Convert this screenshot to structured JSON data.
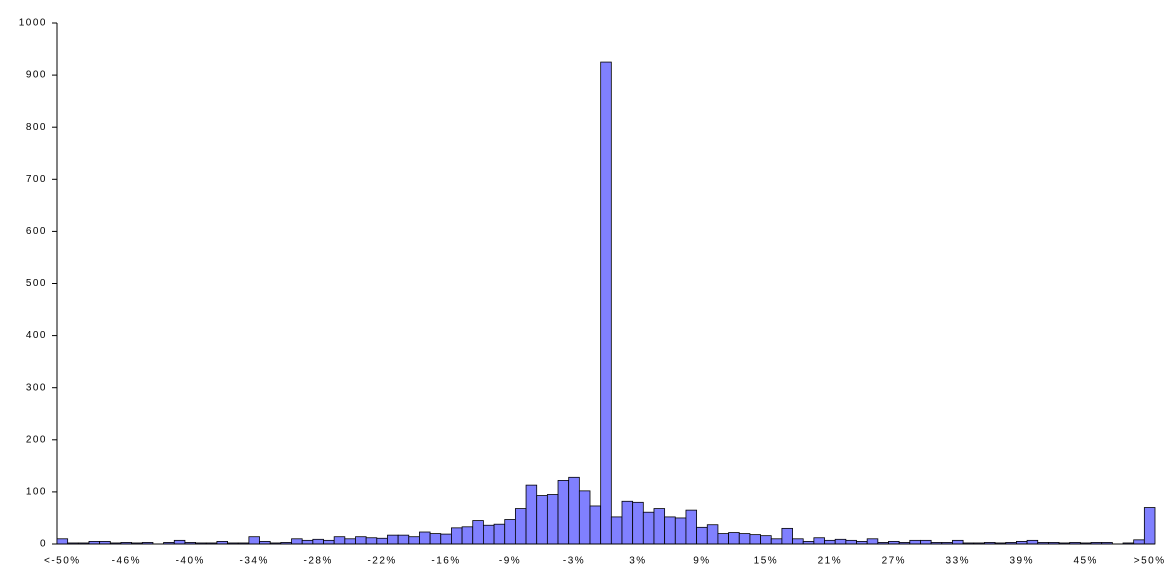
{
  "chart_data": {
    "type": "bar",
    "categories": [
      "<-50%",
      null,
      null,
      null,
      null,
      null,
      "-46%",
      null,
      null,
      null,
      null,
      null,
      "-40%",
      null,
      null,
      null,
      null,
      null,
      "-34%",
      null,
      null,
      null,
      null,
      null,
      "-28%",
      null,
      null,
      null,
      null,
      null,
      "-22%",
      null,
      null,
      null,
      null,
      null,
      "-16%",
      null,
      null,
      null,
      null,
      null,
      "-9%",
      null,
      null,
      null,
      null,
      null,
      "-3%",
      null,
      null,
      null,
      null,
      null,
      "3%",
      null,
      null,
      null,
      null,
      null,
      "9%",
      null,
      null,
      null,
      null,
      null,
      "15%",
      null,
      null,
      null,
      null,
      null,
      "21%",
      null,
      null,
      null,
      null,
      null,
      "27%",
      null,
      null,
      null,
      null,
      null,
      "33%",
      null,
      null,
      null,
      null,
      null,
      "39%",
      null,
      null,
      null,
      null,
      null,
      "45%",
      null,
      null,
      null,
      null,
      null,
      ">50%"
    ],
    "values": [
      10,
      2,
      2,
      5,
      5,
      2,
      3,
      2,
      3,
      0,
      3,
      7,
      3,
      2,
      2,
      5,
      2,
      2,
      14,
      5,
      2,
      3,
      10,
      7,
      9,
      7,
      14,
      10,
      14,
      12,
      11,
      17,
      17,
      14,
      23,
      20,
      19,
      31,
      33,
      45,
      36,
      38,
      47,
      68,
      113,
      93,
      95,
      122,
      128,
      102,
      73,
      925,
      52,
      82,
      80,
      61,
      68,
      52,
      50,
      65,
      32,
      37,
      20,
      22,
      20,
      18,
      16,
      10,
      30,
      10,
      5,
      12,
      7,
      9,
      7,
      5,
      10,
      3,
      5,
      3,
      7,
      7,
      3,
      3,
      7,
      2,
      2,
      3,
      2,
      3,
      5,
      7,
      3,
      3,
      2,
      3,
      2,
      3,
      3,
      0,
      2,
      8,
      70
    ],
    "color": "#8080ff",
    "ylim": [
      0,
      1000
    ],
    "yticks": [
      0,
      100,
      200,
      300,
      400,
      500,
      600,
      700,
      800,
      900,
      1000
    ],
    "grid": false
  }
}
